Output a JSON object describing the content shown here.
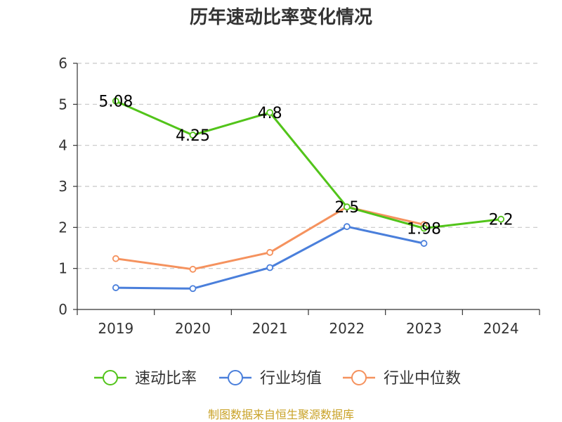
{
  "chart_data": {
    "type": "line",
    "title": "历年速动比率变化情况",
    "categories": [
      "2019",
      "2020",
      "2021",
      "2022",
      "2023",
      "2024"
    ],
    "ylim": [
      0,
      6
    ],
    "yticks": [
      0,
      1,
      2,
      3,
      4,
      5,
      6
    ],
    "grid": true,
    "legend_position": "bottom",
    "series": [
      {
        "name": "速动比率",
        "color": "#52c41a",
        "values": [
          5.08,
          4.25,
          4.8,
          2.5,
          1.98,
          2.2
        ],
        "labels": [
          "5.08",
          "4.25",
          "4.8",
          "2.5",
          "1.98",
          "2.2"
        ],
        "show_labels": true
      },
      {
        "name": "行业均值",
        "color": "#4a7fdb",
        "values": [
          0.53,
          0.51,
          1.02,
          2.02,
          1.61,
          null
        ],
        "show_labels": false
      },
      {
        "name": "行业中位数",
        "color": "#f5925e",
        "values": [
          1.24,
          0.98,
          1.39,
          2.5,
          2.07,
          null
        ],
        "show_labels": false
      }
    ]
  },
  "source_note": "制图数据来自恒生聚源数据库"
}
